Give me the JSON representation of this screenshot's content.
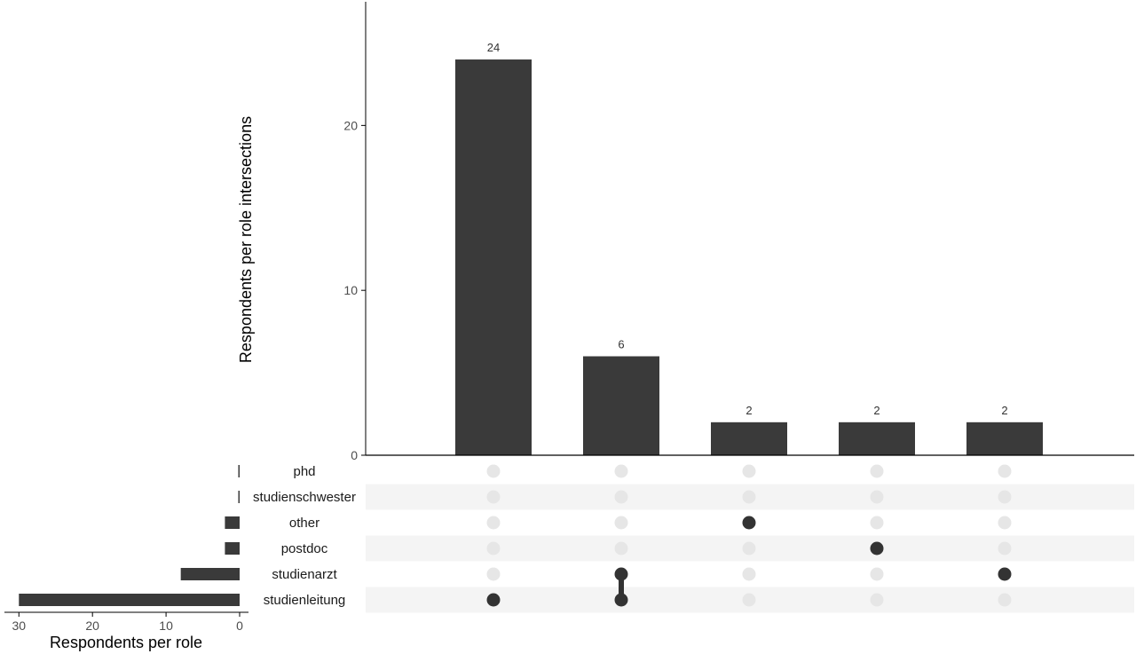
{
  "chart_data": [
    {
      "type": "bar",
      "chart_role": "intersection-sizes",
      "ylabel": "Respondents per role intersections",
      "ylim": [
        0,
        27.5
      ],
      "yticks": [
        0,
        10,
        20
      ],
      "values": [
        24,
        6,
        2,
        2,
        2
      ],
      "data_labels": [
        "24",
        "6",
        "2",
        "2",
        "2"
      ],
      "intersections": [
        [
          "studienleitung"
        ],
        [
          "studienarzt",
          "studienleitung"
        ],
        [
          "other"
        ],
        [
          "postdoc"
        ],
        [
          "studienarzt"
        ]
      ]
    },
    {
      "type": "bar",
      "orientation": "horizontal",
      "chart_role": "set-sizes",
      "xlabel": "Respondents per role",
      "sets": [
        "phd",
        "studienschwester",
        "other",
        "postdoc",
        "studienarzt",
        "studienleitung"
      ],
      "values": [
        0.1,
        0.1,
        2,
        2,
        8,
        30
      ],
      "xlim": [
        31,
        0
      ],
      "xticks": [
        30,
        20,
        10,
        0
      ]
    }
  ],
  "colors": {
    "bar": "#3a3a3a",
    "dot_active": "#333333",
    "dot_inactive": "#e6e6e6",
    "stripe": "#f4f4f4"
  }
}
